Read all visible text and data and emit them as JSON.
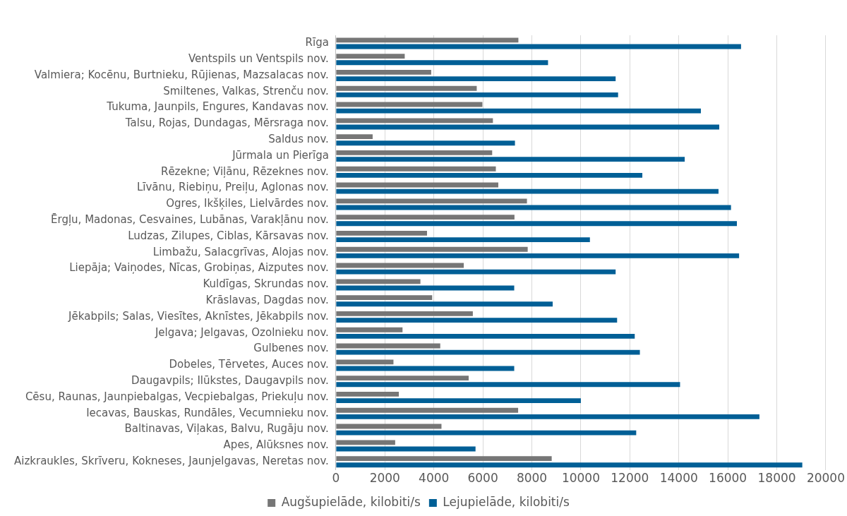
{
  "chart_data": {
    "type": "bar",
    "orientation": "horizontal",
    "categories": [
      "Rīga",
      "Ventspils un Ventspils nov.",
      "Valmiera; Kocēnu, Burtnieku, Rūjienas, Mazsalacas nov.",
      "Smiltenes, Valkas, Strenču nov.",
      "Tukuma, Jaunpils, Engures, Kandavas nov.",
      "Talsu, Rojas, Dundagas, Mērsraga nov.",
      "Saldus nov.",
      "Jūrmala un Pierīga",
      "Rēzekne; Viļānu, Rēzeknes nov.",
      "Līvānu, Riebiņu, Preiļu, Aglonas nov.",
      "Ogres, Ikšķiles, Lielvārdes nov.",
      "Ērgļu, Madonas, Cesvaines, Lubānas, Varakļānu nov.",
      "Ludzas, Zilupes, Ciblas, Kārsavas nov.",
      "Limbažu, Salacgrīvas, Alojas nov.",
      "Liepāja; Vaiņodes, Nīcas, Grobiņas, Aizputes nov.",
      "Kuldīgas, Skrundas nov.",
      "Krāslavas, Dagdas nov.",
      "Jēkabpils; Salas, Viesītes, Aknīstes, Jēkabpils nov.",
      "Jelgava; Jelgavas, Ozolnieku nov.",
      "Gulbenes nov.",
      "Dobeles, Tērvetes, Auces nov.",
      "Daugavpils; Ilūkstes, Daugavpils nov.",
      "Cēsu, Raunas, Jaunpiebalgas, Vecpiebalgas, Priekuļu nov.",
      "Iecavas, Bauskas, Rundāles, Vecumnieku nov.",
      "Baltinavas, Viļakas, Balvu, Rugāju nov.",
      "Apes, Alūksnes nov.",
      "Aizkraukles, Skrīveru, Kokneses, Jaunjelgavas, Neretas nov."
    ],
    "series": [
      {
        "name": "Augšupielāde, kilobiti/s",
        "color": "#767676",
        "values": [
          7450,
          2810,
          3890,
          5750,
          5980,
          6410,
          1500,
          6380,
          6530,
          6630,
          7800,
          7290,
          3720,
          7830,
          5220,
          3450,
          3930,
          5590,
          2720,
          4260,
          2350,
          5420,
          2570,
          7440,
          4310,
          2420,
          8810
        ]
      },
      {
        "name": "Lejupielāde, kilobiti/s",
        "color": "#005f96",
        "values": [
          16540,
          8660,
          11420,
          11520,
          14900,
          15650,
          7310,
          14240,
          12510,
          15620,
          16130,
          16370,
          10370,
          16460,
          11420,
          7280,
          8850,
          11480,
          12200,
          12410,
          7280,
          14050,
          10000,
          17290,
          12260,
          5700,
          19040
        ]
      }
    ],
    "xlim": [
      0,
      20000
    ],
    "xticks": [
      0,
      2000,
      4000,
      6000,
      8000,
      10000,
      12000,
      14000,
      16000,
      18000,
      20000
    ],
    "grid": "x",
    "legend": "bottom"
  }
}
